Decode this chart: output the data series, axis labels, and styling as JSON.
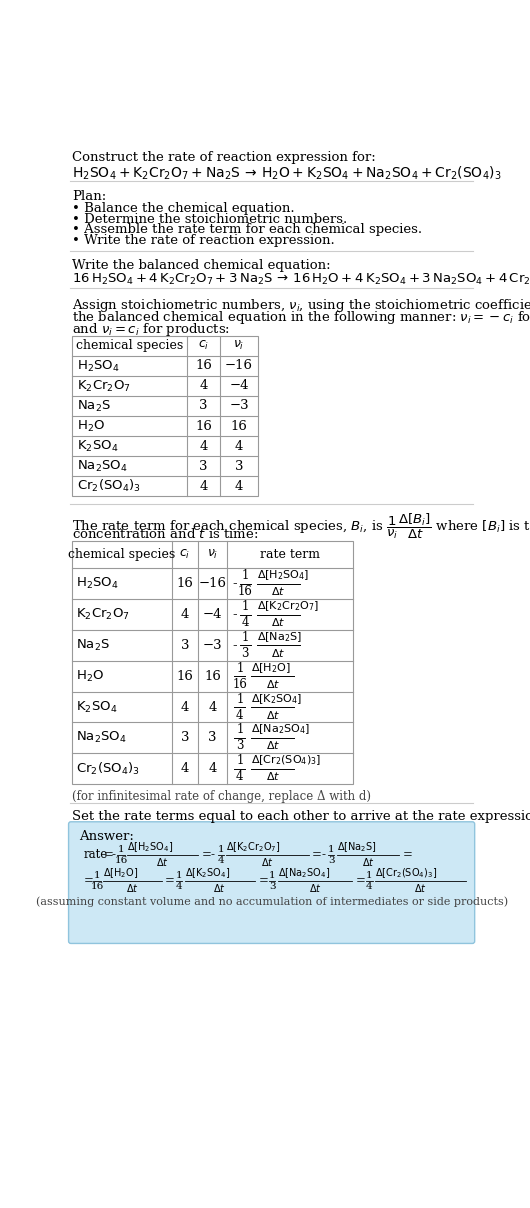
{
  "title_line1": "Construct the rate of reaction expression for:",
  "plan_header": "Plan:",
  "plan_items": [
    "• Balance the chemical equation.",
    "• Determine the stoichiometric numbers.",
    "• Assemble the rate term for each chemical species.",
    "• Write the rate of reaction expression."
  ],
  "balanced_eq_header": "Write the balanced chemical equation:",
  "stoich_intro_lines": [
    "Assign stoichiometric numbers, $\\nu_i$, using the stoichiometric coefficients, $c_i$, from",
    "the balanced chemical equation in the following manner: $\\nu_i = -c_i$ for reactants",
    "and $\\nu_i = c_i$ for products:"
  ],
  "table1_headers": [
    "chemical species",
    "$c_i$",
    "$\\nu_i$"
  ],
  "table1_data": [
    [
      "H_2SO_4",
      "16",
      "−16"
    ],
    [
      "K_2Cr_2O_7",
      "4",
      "−4"
    ],
    [
      "Na_2S",
      "3",
      "−3"
    ],
    [
      "H_2O",
      "16",
      "16"
    ],
    [
      "K_2SO_4",
      "4",
      "4"
    ],
    [
      "Na_2SO_4",
      "3",
      "3"
    ],
    [
      "Cr_2(SO_4)_3",
      "4",
      "4"
    ]
  ],
  "table2_headers": [
    "chemical species",
    "$c_i$",
    "$\\nu_i$",
    "rate term"
  ],
  "table2_data": [
    [
      "H_2SO_4",
      "16",
      "−16"
    ],
    [
      "K_2Cr_2O_7",
      "4",
      "−4"
    ],
    [
      "Na_2S",
      "3",
      "−3"
    ],
    [
      "H_2O",
      "16",
      "16"
    ],
    [
      "K_2SO_4",
      "4",
      "4"
    ],
    [
      "Na_2SO_4",
      "3",
      "3"
    ],
    [
      "Cr_2(SO_4)_3",
      "4",
      "4"
    ]
  ],
  "infinitesimal_note": "(for infinitesimal rate of change, replace Δ with d)",
  "set_rate_header": "Set the rate terms equal to each other to arrive at the rate expression:",
  "answer_bg_color": "#cde8f5",
  "answer_border_color": "#90c4dd",
  "bg_color": "#ffffff",
  "text_color": "#000000",
  "table_border_color": "#999999",
  "sep_line_color": "#cccccc"
}
